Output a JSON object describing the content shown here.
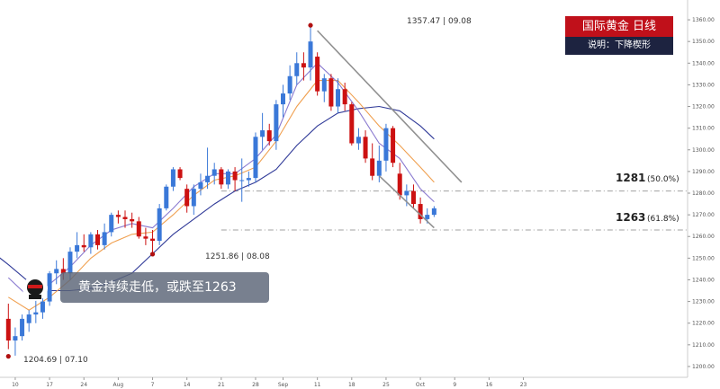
{
  "header": {
    "title": "国际黄金  日线",
    "subtitle": "说明：下降楔形"
  },
  "callout": {
    "text": "黄金持续走低，或跌至1263"
  },
  "annotations": {
    "high": "1357.47 | 09.08",
    "low1": "1204.69 | 07.10",
    "low2": "1251.86 | 08.08",
    "level1_value": "1281",
    "level1_pct": "(50.0%)",
    "level2_value": "1263",
    "level2_pct": "(61.8%)"
  },
  "colors": {
    "up": "#3a78d8",
    "down": "#cc1111",
    "ma_short": "#8a7ad0",
    "ma_mid": "#f0a050",
    "ma_long": "#303a98",
    "wedge": "#909090",
    "level_line": "#a0a0a0",
    "marker": "#b01010"
  },
  "chart_data": {
    "type": "candlestick",
    "ylim": [
      1195,
      1365
    ],
    "yticks": [
      1200,
      1210,
      1220,
      1230,
      1240,
      1250,
      1260,
      1270,
      1280,
      1290,
      1300,
      1310,
      1320,
      1330,
      1340,
      1350,
      1360
    ],
    "xticks": [
      {
        "i": 1,
        "label": "10"
      },
      {
        "i": 6,
        "label": "17"
      },
      {
        "i": 11,
        "label": "24"
      },
      {
        "i": 16,
        "label": "Aug"
      },
      {
        "i": 21,
        "label": "7"
      },
      {
        "i": 26,
        "label": "14"
      },
      {
        "i": 31,
        "label": "21"
      },
      {
        "i": 36,
        "label": "28"
      },
      {
        "i": 40,
        "label": "Sep"
      },
      {
        "i": 45,
        "label": "11"
      },
      {
        "i": 50,
        "label": "18"
      },
      {
        "i": 55,
        "label": "25"
      },
      {
        "i": 60,
        "label": "Oct"
      },
      {
        "i": 65,
        "label": "9"
      },
      {
        "i": 70,
        "label": "16"
      },
      {
        "i": 75,
        "label": "23"
      }
    ],
    "candles": [
      {
        "o": 1222,
        "h": 1229,
        "l": 1208,
        "c": 1212
      },
      {
        "o": 1212,
        "h": 1218,
        "l": 1205,
        "c": 1214
      },
      {
        "o": 1214,
        "h": 1224,
        "l": 1212,
        "c": 1222
      },
      {
        "o": 1220,
        "h": 1226,
        "l": 1216,
        "c": 1224
      },
      {
        "o": 1224,
        "h": 1233,
        "l": 1220,
        "c": 1225
      },
      {
        "o": 1225,
        "h": 1233,
        "l": 1222,
        "c": 1230
      },
      {
        "o": 1230,
        "h": 1244,
        "l": 1228,
        "c": 1243
      },
      {
        "o": 1243,
        "h": 1249,
        "l": 1238,
        "c": 1245
      },
      {
        "o": 1245,
        "h": 1250,
        "l": 1240,
        "c": 1243
      },
      {
        "o": 1243,
        "h": 1255,
        "l": 1240,
        "c": 1253
      },
      {
        "o": 1253,
        "h": 1262,
        "l": 1250,
        "c": 1256
      },
      {
        "o": 1256,
        "h": 1261,
        "l": 1253,
        "c": 1255
      },
      {
        "o": 1255,
        "h": 1262,
        "l": 1252,
        "c": 1261
      },
      {
        "o": 1261,
        "h": 1263,
        "l": 1254,
        "c": 1256
      },
      {
        "o": 1256,
        "h": 1266,
        "l": 1254,
        "c": 1262
      },
      {
        "o": 1262,
        "h": 1271,
        "l": 1260,
        "c": 1270
      },
      {
        "o": 1270,
        "h": 1272,
        "l": 1266,
        "c": 1269
      },
      {
        "o": 1269,
        "h": 1272,
        "l": 1264,
        "c": 1268
      },
      {
        "o": 1268,
        "h": 1271,
        "l": 1264,
        "c": 1267
      },
      {
        "o": 1267,
        "h": 1269,
        "l": 1259,
        "c": 1260
      },
      {
        "o": 1260,
        "h": 1264,
        "l": 1256,
        "c": 1259
      },
      {
        "o": 1259,
        "h": 1263,
        "l": 1252,
        "c": 1258
      },
      {
        "o": 1258,
        "h": 1275,
        "l": 1256,
        "c": 1273
      },
      {
        "o": 1273,
        "h": 1284,
        "l": 1272,
        "c": 1283
      },
      {
        "o": 1283,
        "h": 1292,
        "l": 1281,
        "c": 1291
      },
      {
        "o": 1291,
        "h": 1292,
        "l": 1286,
        "c": 1287
      },
      {
        "o": 1282,
        "h": 1284,
        "l": 1271,
        "c": 1274
      },
      {
        "o": 1274,
        "h": 1284,
        "l": 1270,
        "c": 1282
      },
      {
        "o": 1282,
        "h": 1289,
        "l": 1279,
        "c": 1285
      },
      {
        "o": 1285,
        "h": 1301,
        "l": 1282,
        "c": 1288
      },
      {
        "o": 1288,
        "h": 1294,
        "l": 1284,
        "c": 1291
      },
      {
        "o": 1291,
        "h": 1292,
        "l": 1282,
        "c": 1284
      },
      {
        "o": 1284,
        "h": 1291,
        "l": 1282,
        "c": 1290
      },
      {
        "o": 1290,
        "h": 1292,
        "l": 1281,
        "c": 1286
      },
      {
        "o": 1286,
        "h": 1296,
        "l": 1276,
        "c": 1286
      },
      {
        "o": 1286,
        "h": 1290,
        "l": 1283,
        "c": 1287
      },
      {
        "o": 1287,
        "h": 1308,
        "l": 1285,
        "c": 1306
      },
      {
        "o": 1306,
        "h": 1317,
        "l": 1300,
        "c": 1309
      },
      {
        "o": 1309,
        "h": 1312,
        "l": 1302,
        "c": 1304
      },
      {
        "o": 1304,
        "h": 1323,
        "l": 1300,
        "c": 1321
      },
      {
        "o": 1321,
        "h": 1330,
        "l": 1315,
        "c": 1326
      },
      {
        "o": 1326,
        "h": 1339,
        "l": 1323,
        "c": 1334
      },
      {
        "o": 1334,
        "h": 1345,
        "l": 1330,
        "c": 1340
      },
      {
        "o": 1340,
        "h": 1345,
        "l": 1332,
        "c": 1338
      },
      {
        "o": 1338,
        "h": 1357,
        "l": 1332,
        "c": 1350
      },
      {
        "o": 1343,
        "h": 1345,
        "l": 1325,
        "c": 1327
      },
      {
        "o": 1327,
        "h": 1335,
        "l": 1322,
        "c": 1333
      },
      {
        "o": 1333,
        "h": 1335,
        "l": 1318,
        "c": 1320
      },
      {
        "o": 1320,
        "h": 1333,
        "l": 1317,
        "c": 1328
      },
      {
        "o": 1328,
        "h": 1331,
        "l": 1318,
        "c": 1321
      },
      {
        "o": 1321,
        "h": 1322,
        "l": 1302,
        "c": 1303
      },
      {
        "o": 1303,
        "h": 1310,
        "l": 1300,
        "c": 1306
      },
      {
        "o": 1306,
        "h": 1309,
        "l": 1294,
        "c": 1296
      },
      {
        "o": 1296,
        "h": 1303,
        "l": 1286,
        "c": 1288
      },
      {
        "o": 1288,
        "h": 1302,
        "l": 1285,
        "c": 1295
      },
      {
        "o": 1295,
        "h": 1312,
        "l": 1290,
        "c": 1310
      },
      {
        "o": 1310,
        "h": 1311,
        "l": 1292,
        "c": 1294
      },
      {
        "o": 1289,
        "h": 1294,
        "l": 1277,
        "c": 1279
      },
      {
        "o": 1279,
        "h": 1284,
        "l": 1274,
        "c": 1281
      },
      {
        "o": 1281,
        "h": 1284,
        "l": 1273,
        "c": 1275
      },
      {
        "o": 1275,
        "h": 1278,
        "l": 1266,
        "c": 1268
      },
      {
        "o": 1268,
        "h": 1273,
        "l": 1266,
        "c": 1270
      },
      {
        "o": 1270,
        "h": 1274,
        "l": 1269,
        "c": 1273
      }
    ],
    "ma_short": [
      [
        0,
        1241
      ],
      [
        3,
        1232
      ],
      [
        6,
        1238
      ],
      [
        9,
        1246
      ],
      [
        12,
        1256
      ],
      [
        15,
        1263
      ],
      [
        18,
        1266
      ],
      [
        21,
        1264
      ],
      [
        24,
        1273
      ],
      [
        27,
        1283
      ],
      [
        30,
        1289
      ],
      [
        33,
        1289
      ],
      [
        36,
        1296
      ],
      [
        39,
        1307
      ],
      [
        42,
        1330
      ],
      [
        45,
        1340
      ],
      [
        48,
        1331
      ],
      [
        51,
        1318
      ],
      [
        54,
        1303
      ],
      [
        57,
        1296
      ],
      [
        60,
        1282
      ],
      [
        62,
        1276
      ]
    ],
    "ma_mid": [
      [
        0,
        1232
      ],
      [
        3,
        1226
      ],
      [
        6,
        1232
      ],
      [
        9,
        1240
      ],
      [
        12,
        1250
      ],
      [
        15,
        1257
      ],
      [
        18,
        1261
      ],
      [
        21,
        1262
      ],
      [
        24,
        1270
      ],
      [
        27,
        1279
      ],
      [
        30,
        1286
      ],
      [
        33,
        1288
      ],
      [
        36,
        1292
      ],
      [
        39,
        1304
      ],
      [
        42,
        1320
      ],
      [
        45,
        1332
      ],
      [
        48,
        1332
      ],
      [
        51,
        1322
      ],
      [
        54,
        1311
      ],
      [
        57,
        1302
      ],
      [
        60,
        1292
      ],
      [
        62,
        1285
      ]
    ],
    "ma_long": [
      [
        -2,
        1252
      ],
      [
        0,
        1247
      ],
      [
        3,
        1239
      ],
      [
        6,
        1235
      ],
      [
        9,
        1235
      ],
      [
        12,
        1236
      ],
      [
        15,
        1239
      ],
      [
        18,
        1243
      ],
      [
        21,
        1252
      ],
      [
        24,
        1261
      ],
      [
        27,
        1268
      ],
      [
        30,
        1275
      ],
      [
        33,
        1281
      ],
      [
        36,
        1285
      ],
      [
        39,
        1291
      ],
      [
        42,
        1302
      ],
      [
        45,
        1311
      ],
      [
        48,
        1317
      ],
      [
        51,
        1319
      ],
      [
        54,
        1320
      ],
      [
        57,
        1318
      ],
      [
        60,
        1311
      ],
      [
        62,
        1305
      ]
    ],
    "wedge_upper": [
      [
        45,
        1355
      ],
      [
        66,
        1285
      ]
    ],
    "wedge_lower": [
      [
        54,
        1288
      ],
      [
        62,
        1264
      ]
    ],
    "levels": [
      1281,
      1263
    ],
    "points": {
      "high": {
        "i": 44,
        "v": 1357.47
      },
      "low1": {
        "i": 0,
        "v": 1204.69
      },
      "low2": {
        "i": 21,
        "v": 1251.86
      }
    }
  }
}
